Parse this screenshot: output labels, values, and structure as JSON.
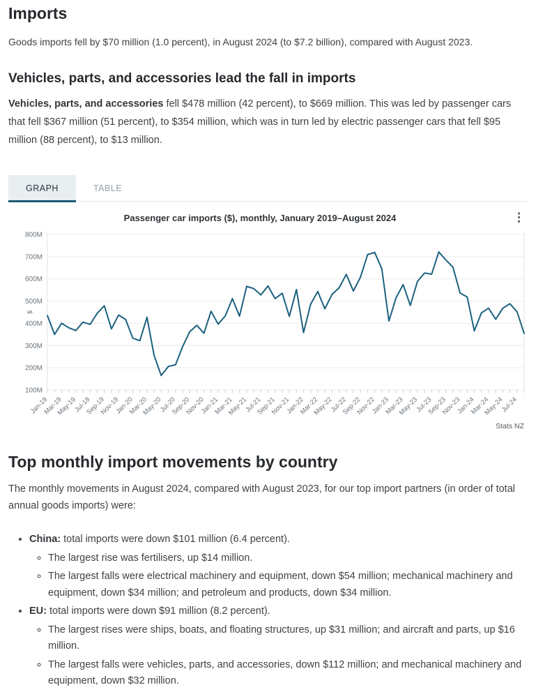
{
  "header": {
    "title": "Imports",
    "intro": "Goods imports fell by $70 million (1.0 percent), in August 2024 (to $7.2 billion), compared with August 2023."
  },
  "vehicles": {
    "heading": "Vehicles, parts, and accessories lead the fall in imports",
    "lead_bold": "Vehicles, parts, and accessories",
    "lead_rest": " fell $478 million (42 percent), to $669 million. This was led by passenger cars that fell $367 million (51 percent), to $354 million, which was in turn led by electric passenger cars that fell $95 million (88 percent), to $13 million."
  },
  "tabs": [
    {
      "label": "GRAPH",
      "active": true
    },
    {
      "label": "TABLE",
      "active": false
    }
  ],
  "icons": {
    "kebab_menu": "⋮"
  },
  "chart_data": {
    "type": "line",
    "title": "Passenger car imports ($), monthly, January 2019–August 2024",
    "ylabel": "$",
    "source": "Stats NZ",
    "grid": true,
    "legend": "none",
    "ylim": [
      100,
      800
    ],
    "yticks": [
      100,
      200,
      300,
      400,
      500,
      600,
      700,
      800
    ],
    "ytick_suffix": "M",
    "x_label_every": 2,
    "x": [
      "Jan-19",
      "Feb-19",
      "Mar-19",
      "Apr-19",
      "May-19",
      "Jun-19",
      "Jul-19",
      "Aug-19",
      "Sep-19",
      "Oct-19",
      "Nov-19",
      "Dec-19",
      "Jan-20",
      "Feb-20",
      "Mar-20",
      "Apr-20",
      "May-20",
      "Jun-20",
      "Jul-20",
      "Aug-20",
      "Sep-20",
      "Oct-20",
      "Nov-20",
      "Dec-20",
      "Jan-21",
      "Feb-21",
      "Mar-21",
      "Apr-21",
      "May-21",
      "Jun-21",
      "Jul-21",
      "Aug-21",
      "Sep-21",
      "Oct-21",
      "Nov-21",
      "Dec-21",
      "Jan-22",
      "Feb-22",
      "Mar-22",
      "Apr-22",
      "May-22",
      "Jun-22",
      "Jul-22",
      "Aug-22",
      "Sep-22",
      "Oct-22",
      "Nov-22",
      "Dec-22",
      "Jan-23",
      "Feb-23",
      "Mar-23",
      "Apr-23",
      "May-23",
      "Jun-23",
      "Jul-23",
      "Aug-23",
      "Sep-23",
      "Oct-23",
      "Nov-23",
      "Dec-23",
      "Jan-24",
      "Feb-24",
      "Mar-24",
      "Apr-24",
      "May-24",
      "Jun-24",
      "Jul-24",
      "Aug-24"
    ],
    "series": [
      {
        "name": "Passenger car imports ($)",
        "color": "#1b617f",
        "values": [
          435,
          350,
          400,
          380,
          367,
          405,
          395,
          445,
          479,
          375,
          437,
          417,
          333,
          322,
          427,
          255,
          165,
          206,
          213,
          295,
          362,
          391,
          355,
          454,
          396,
          433,
          511,
          432,
          566,
          556,
          528,
          568,
          511,
          535,
          431,
          552,
          358,
          486,
          543,
          465,
          530,
          560,
          620,
          545,
          608,
          709,
          719,
          645,
          410,
          515,
          574,
          480,
          588,
          626,
          621,
          721,
          685,
          652,
          536,
          518,
          366,
          447,
          468,
          418,
          468,
          488,
          452,
          354
        ]
      }
    ]
  },
  "country": {
    "heading": "Top monthly import movements by country",
    "intro": "The monthly movements in August 2024, compared with August 2023, for our top import partners (in order of total annual goods imports) were:",
    "bullets": [
      {
        "lead": "China:",
        "text": " total imports were down $101 million (6.4 percent).",
        "subitems": [
          "The largest rise was fertilisers, up $14 million.",
          "The largest falls were electrical machinery and equipment, down $54 million; mechanical machinery and equipment, down $34 million; and petroleum and products, down $34 million."
        ]
      },
      {
        "lead": "EU:",
        "text": " total imports were down $91 million (8.2 percent).",
        "subitems": [
          "The largest rises were ships, boats, and floating structures, up $31 million; and aircraft and parts, up $16 million.",
          "The largest falls were vehicles, parts, and accessories, down $112 million; and mechanical machinery and equipment, down $32 million."
        ]
      }
    ]
  }
}
